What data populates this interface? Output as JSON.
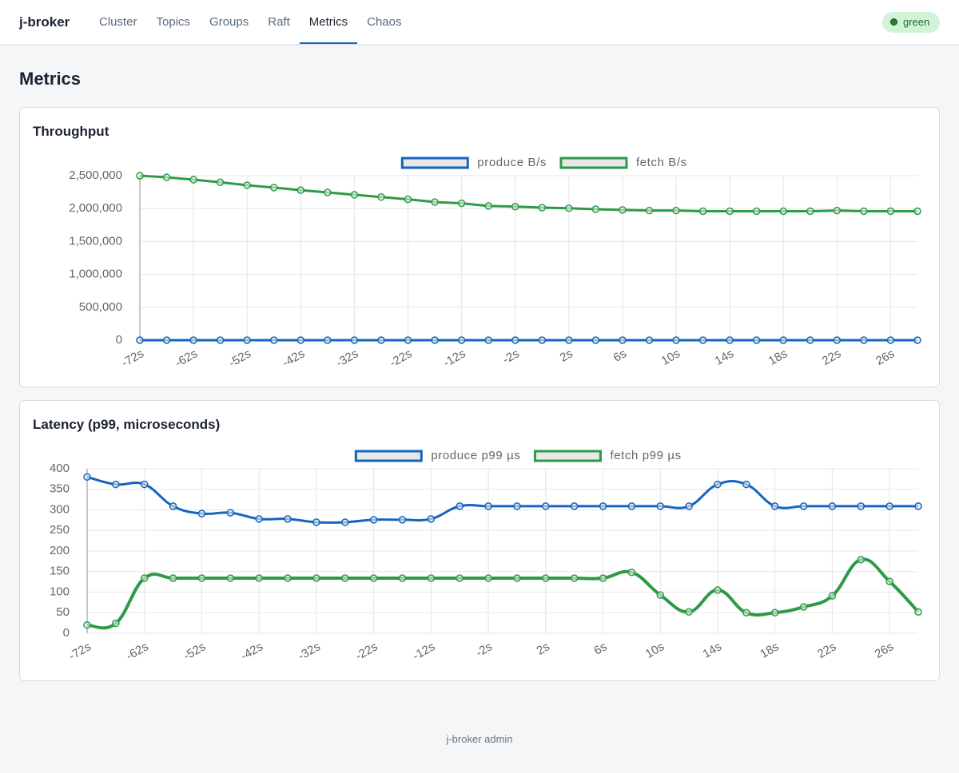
{
  "nav": {
    "brand": "j-broker",
    "items": [
      "Cluster",
      "Topics",
      "Groups",
      "Raft",
      "Metrics",
      "Chaos"
    ],
    "active_item": 4,
    "status": "green"
  },
  "page_title": "Metrics",
  "chart_data": [
    {
      "type": "line",
      "title": "Throughput",
      "categories": [
        "-72s",
        null,
        "-62s",
        null,
        "-52s",
        null,
        "-42s",
        null,
        "-32s",
        null,
        "-22s",
        null,
        "-12s",
        null,
        "-2s",
        null,
        "2s",
        null,
        "6s",
        null,
        "10s",
        null,
        "14s",
        null,
        "18s",
        null,
        "22s",
        null,
        "26s",
        null
      ],
      "series": [
        {
          "name": "produce B/s",
          "color": "#1565c0",
          "values": [
            0,
            0,
            0,
            0,
            0,
            0,
            0,
            0,
            0,
            0,
            0,
            0,
            0,
            0,
            0,
            0,
            0,
            0,
            0,
            0,
            0,
            0,
            0,
            0,
            0,
            0,
            0,
            0,
            0,
            0
          ]
        },
        {
          "name": "fetch B/s",
          "color": "#2e9a47",
          "values": [
            2500000,
            2475000,
            2440000,
            2400000,
            2355000,
            2320000,
            2280000,
            2245000,
            2210000,
            2175000,
            2140000,
            2100000,
            2080000,
            2040000,
            2030000,
            2015000,
            2005000,
            1990000,
            1980000,
            1970000,
            1970000,
            1960000,
            1960000,
            1960000,
            1960000,
            1960000,
            1970000,
            1960000,
            1960000,
            1960000
          ]
        }
      ],
      "ylim": [
        0,
        2500000
      ],
      "yticks": [
        0,
        {
          "value": 500000,
          "label": "500,000"
        },
        {
          "value": 1000000,
          "label": "1,000,000"
        },
        {
          "value": 1500000,
          "label": "1,500,000"
        },
        {
          "value": 2000000,
          "label": "2,000,000"
        },
        {
          "value": 2500000,
          "label": "2,500,000"
        }
      ],
      "grid": true,
      "smooth": false,
      "legend": "top"
    },
    {
      "type": "line",
      "title": "Latency (p99, microseconds)",
      "categories": [
        "-72s",
        null,
        "-62s",
        null,
        "-52s",
        null,
        "-42s",
        null,
        "-32s",
        null,
        "-22s",
        null,
        "-12s",
        null,
        "-2s",
        null,
        "2s",
        null,
        "6s",
        null,
        "10s",
        null,
        "14s",
        null,
        "18s",
        null,
        "22s",
        null,
        "26s",
        null
      ],
      "series": [
        {
          "name": "produce p99 µs",
          "color": "#1565c0",
          "values": [
            380,
            362,
            362,
            309,
            291,
            293,
            278,
            278,
            270,
            270,
            276,
            276,
            278,
            309,
            309,
            309,
            309,
            309,
            309,
            309,
            309,
            309,
            362,
            362,
            309,
            309,
            309,
            309,
            309,
            309
          ]
        },
        {
          "name": "fetch p99 µs",
          "color": "#2e9a47",
          "values": [
            20,
            24,
            134,
            134,
            134,
            134,
            134,
            134,
            134,
            134,
            134,
            134,
            134,
            134,
            134,
            134,
            134,
            134,
            134,
            148,
            93,
            52,
            105,
            50,
            50,
            64,
            91,
            179,
            126,
            52
          ]
        }
      ],
      "ylim": [
        0,
        400
      ],
      "yticks": [
        0,
        50,
        100,
        150,
        200,
        250,
        300,
        350,
        400
      ],
      "grid": true,
      "smooth": true,
      "legend": "top"
    }
  ],
  "footer": "j-broker admin"
}
